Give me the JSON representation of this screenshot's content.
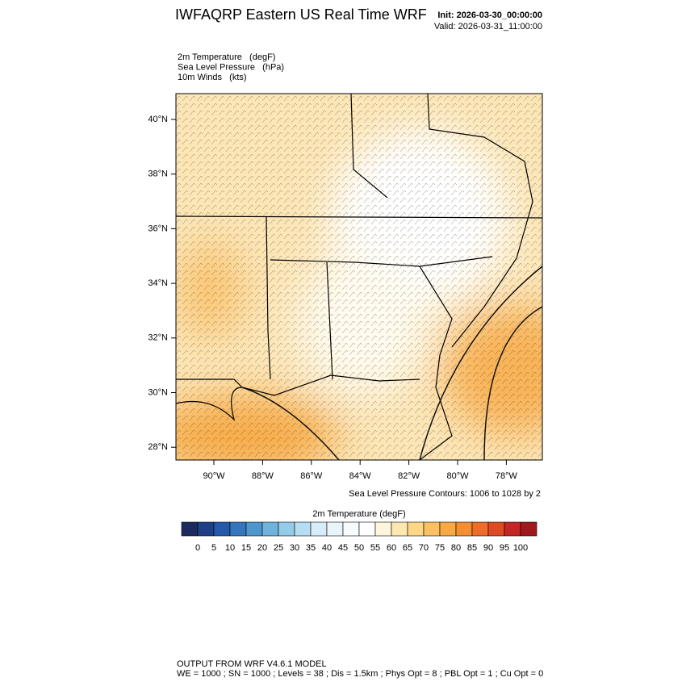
{
  "header": {
    "title": "IWFAQRP Eastern US Real Time WRF",
    "init": "Init: 2026-03-30_00:00:00",
    "valid": "Valid: 2026-03-31_11:00:00"
  },
  "fields": [
    "2m Temperature   (degF)",
    "Sea Level Pressure   (hPa)",
    "10m Winds   (kts)"
  ],
  "map": {
    "lat_labels": [
      "40°N",
      "38°N",
      "36°N",
      "34°N",
      "32°N",
      "30°N",
      "28°N"
    ],
    "lon_labels": [
      "90°W",
      "88°W",
      "86°W",
      "84°W",
      "82°W",
      "80°W",
      "78°W"
    ],
    "contour_note": "Sea Level Pressure Contours: 1006 to 1028 by 2"
  },
  "colorbar": {
    "title": "2m Temperature  (degF)",
    "colors": [
      "#1b2a5e",
      "#1f3f87",
      "#2458a8",
      "#3575bb",
      "#4f96cc",
      "#6fb2dc",
      "#93cbe8",
      "#b6def2",
      "#d6ecf8",
      "#eaf5fb",
      "#f7fbfd",
      "#ffffff",
      "#fff5dc",
      "#ffe8b0",
      "#fdd688",
      "#fbc062",
      "#f8a844",
      "#f38f32",
      "#ec6e2a",
      "#de4a26",
      "#c32624",
      "#9e1a1f"
    ],
    "labels": [
      "0",
      "5",
      "10",
      "15",
      "20",
      "25",
      "30",
      "35",
      "40",
      "45",
      "50",
      "55",
      "60",
      "65",
      "70",
      "75",
      "80",
      "85",
      "90",
      "95",
      "100"
    ]
  },
  "footer": {
    "line1": "OUTPUT FROM WRF V4.6.1 MODEL",
    "line2": "WE = 1000 ; SN = 1000 ; Levels = 38 ; Dis = 1.5km ; Phys Opt = 8 ; PBL Opt = 1 ; Cu Opt = 0"
  }
}
